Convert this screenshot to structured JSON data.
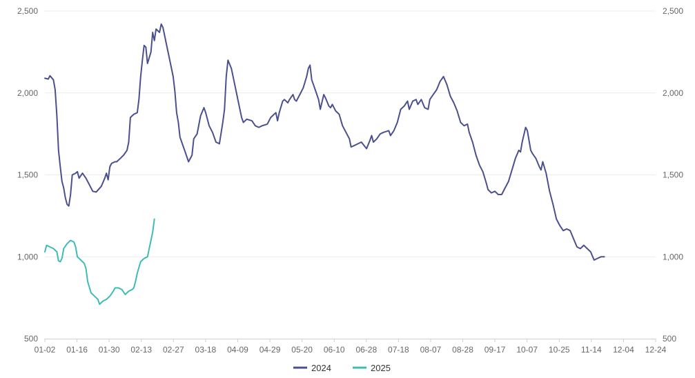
{
  "chart_data": {
    "type": "line",
    "title": "",
    "xlabel": "",
    "ylabel": "",
    "ylim": [
      500,
      2500
    ],
    "yticks": [
      500,
      1000,
      1500,
      2000,
      2500
    ],
    "ytick_labels": [
      "500",
      "1,000",
      "1,500",
      "2,000",
      "2,500"
    ],
    "x_domain": [
      "01-02",
      "12-24"
    ],
    "xtick_labels": [
      "01-02",
      "01-16",
      "01-30",
      "02-13",
      "02-27",
      "03-18",
      "04-09",
      "04-29",
      "05-20",
      "06-10",
      "06-28",
      "07-18",
      "08-07",
      "08-28",
      "09-17",
      "10-07",
      "10-25",
      "11-14",
      "12-04",
      "12-24"
    ],
    "grid": "horizontal",
    "legend_position": "bottom-center",
    "colors": {
      "2024": "#4a4f8e",
      "2025": "#3cbcb4"
    },
    "series": [
      {
        "name": "2024",
        "color": "#4a4f8e",
        "points": [
          [
            "01-02",
            2090
          ],
          [
            "01-04",
            2085
          ],
          [
            "01-05",
            2105
          ],
          [
            "01-07",
            2080
          ],
          [
            "01-08",
            2020
          ],
          [
            "01-09",
            1860
          ],
          [
            "01-10",
            1650
          ],
          [
            "01-11",
            1550
          ],
          [
            "01-12",
            1460
          ],
          [
            "01-13",
            1420
          ],
          [
            "01-14",
            1360
          ],
          [
            "01-15",
            1320
          ],
          [
            "01-16",
            1310
          ],
          [
            "01-17",
            1380
          ],
          [
            "01-18",
            1500
          ],
          [
            "01-20",
            1510
          ],
          [
            "01-21",
            1520
          ],
          [
            "01-22",
            1480
          ],
          [
            "01-24",
            1510
          ],
          [
            "01-26",
            1480
          ],
          [
            "01-28",
            1440
          ],
          [
            "01-30",
            1400
          ],
          [
            "02-01",
            1395
          ],
          [
            "02-04",
            1430
          ],
          [
            "02-06",
            1480
          ],
          [
            "02-07",
            1510
          ],
          [
            "02-08",
            1470
          ],
          [
            "02-09",
            1550
          ],
          [
            "02-10",
            1570
          ],
          [
            "02-12",
            1580
          ],
          [
            "02-13",
            1580
          ],
          [
            "02-15",
            1600
          ],
          [
            "02-17",
            1620
          ],
          [
            "02-19",
            1650
          ],
          [
            "02-20",
            1700
          ],
          [
            "02-21",
            1850
          ],
          [
            "02-23",
            1870
          ],
          [
            "02-25",
            1880
          ],
          [
            "02-26",
            1960
          ],
          [
            "02-27",
            2100
          ],
          [
            "02-28",
            2200
          ],
          [
            "02-29",
            2290
          ],
          [
            "03-01",
            2280
          ],
          [
            "03-02",
            2180
          ],
          [
            "03-04",
            2250
          ],
          [
            "03-05",
            2370
          ],
          [
            "03-06",
            2320
          ],
          [
            "03-07",
            2390
          ],
          [
            "03-09",
            2370
          ],
          [
            "03-10",
            2420
          ],
          [
            "03-11",
            2400
          ],
          [
            "03-13",
            2300
          ],
          [
            "03-15",
            2200
          ],
          [
            "03-17",
            2100
          ],
          [
            "03-18",
            2010
          ],
          [
            "03-19",
            1880
          ],
          [
            "03-20",
            1820
          ],
          [
            "03-21",
            1730
          ],
          [
            "03-22",
            1700
          ],
          [
            "03-24",
            1640
          ],
          [
            "03-26",
            1580
          ],
          [
            "03-28",
            1620
          ],
          [
            "03-29",
            1720
          ],
          [
            "03-31",
            1750
          ],
          [
            "04-02",
            1860
          ],
          [
            "04-04",
            1910
          ],
          [
            "04-05",
            1880
          ],
          [
            "04-07",
            1800
          ],
          [
            "04-09",
            1760
          ],
          [
            "04-11",
            1700
          ],
          [
            "04-13",
            1690
          ],
          [
            "04-15",
            1820
          ],
          [
            "04-16",
            1900
          ],
          [
            "04-17",
            2100
          ],
          [
            "04-18",
            2200
          ],
          [
            "04-20",
            2150
          ],
          [
            "04-22",
            2050
          ],
          [
            "04-24",
            1950
          ],
          [
            "04-26",
            1850
          ],
          [
            "04-27",
            1820
          ],
          [
            "04-29",
            1840
          ],
          [
            "05-02",
            1830
          ],
          [
            "05-04",
            1800
          ],
          [
            "05-06",
            1790
          ],
          [
            "05-08",
            1800
          ],
          [
            "05-11",
            1810
          ],
          [
            "05-13",
            1850
          ],
          [
            "05-15",
            1870
          ],
          [
            "05-16",
            1880
          ],
          [
            "05-17",
            1830
          ],
          [
            "05-18",
            1880
          ],
          [
            "05-20",
            1950
          ],
          [
            "05-21",
            1960
          ],
          [
            "05-23",
            1940
          ],
          [
            "05-24",
            1960
          ],
          [
            "05-26",
            1990
          ],
          [
            "05-27",
            1960
          ],
          [
            "05-28",
            1950
          ],
          [
            "05-30",
            1990
          ],
          [
            "06-01",
            2030
          ],
          [
            "06-03",
            2100
          ],
          [
            "06-04",
            2150
          ],
          [
            "06-05",
            2170
          ],
          [
            "06-06",
            2080
          ],
          [
            "06-08",
            2020
          ],
          [
            "06-10",
            1960
          ],
          [
            "06-11",
            1900
          ],
          [
            "06-13",
            1990
          ],
          [
            "06-14",
            1970
          ],
          [
            "06-16",
            1920
          ],
          [
            "06-17",
            1910
          ],
          [
            "06-18",
            1930
          ],
          [
            "06-20",
            1890
          ],
          [
            "06-22",
            1870
          ],
          [
            "06-24",
            1800
          ],
          [
            "06-26",
            1760
          ],
          [
            "06-28",
            1720
          ],
          [
            "06-29",
            1670
          ],
          [
            "07-01",
            1680
          ],
          [
            "07-03",
            1690
          ],
          [
            "07-05",
            1700
          ],
          [
            "07-08",
            1660
          ],
          [
            "07-10",
            1710
          ],
          [
            "07-11",
            1740
          ],
          [
            "07-12",
            1700
          ],
          [
            "07-14",
            1720
          ],
          [
            "07-16",
            1750
          ],
          [
            "07-18",
            1760
          ],
          [
            "07-21",
            1770
          ],
          [
            "07-22",
            1740
          ],
          [
            "07-24",
            1770
          ],
          [
            "07-26",
            1820
          ],
          [
            "07-28",
            1900
          ],
          [
            "07-30",
            1920
          ],
          [
            "08-01",
            1950
          ],
          [
            "08-02",
            1900
          ],
          [
            "08-04",
            1950
          ],
          [
            "08-06",
            1960
          ],
          [
            "08-07",
            1930
          ],
          [
            "08-09",
            1960
          ],
          [
            "08-11",
            1910
          ],
          [
            "08-13",
            1900
          ],
          [
            "08-14",
            1960
          ],
          [
            "08-16",
            1990
          ],
          [
            "08-18",
            2020
          ],
          [
            "08-20",
            2070
          ],
          [
            "08-22",
            2100
          ],
          [
            "08-24",
            2050
          ],
          [
            "08-26",
            1980
          ],
          [
            "08-28",
            1940
          ],
          [
            "08-30",
            1890
          ],
          [
            "09-01",
            1820
          ],
          [
            "09-03",
            1800
          ],
          [
            "09-05",
            1810
          ],
          [
            "09-06",
            1760
          ],
          [
            "09-08",
            1700
          ],
          [
            "09-10",
            1620
          ],
          [
            "09-12",
            1560
          ],
          [
            "09-14",
            1520
          ],
          [
            "09-16",
            1450
          ],
          [
            "09-17",
            1410
          ],
          [
            "09-19",
            1390
          ],
          [
            "09-21",
            1400
          ],
          [
            "09-23",
            1380
          ],
          [
            "09-25",
            1380
          ],
          [
            "09-27",
            1420
          ],
          [
            "09-29",
            1460
          ],
          [
            "10-01",
            1530
          ],
          [
            "10-03",
            1600
          ],
          [
            "10-05",
            1650
          ],
          [
            "10-06",
            1640
          ],
          [
            "10-07",
            1700
          ],
          [
            "10-09",
            1790
          ],
          [
            "10-10",
            1770
          ],
          [
            "10-12",
            1650
          ],
          [
            "10-13",
            1630
          ],
          [
            "10-15",
            1600
          ],
          [
            "10-17",
            1550
          ],
          [
            "10-18",
            1530
          ],
          [
            "10-19",
            1580
          ],
          [
            "10-21",
            1510
          ],
          [
            "10-23",
            1400
          ],
          [
            "10-25",
            1320
          ],
          [
            "10-27",
            1230
          ],
          [
            "10-29",
            1190
          ],
          [
            "10-31",
            1160
          ],
          [
            "11-02",
            1170
          ],
          [
            "11-04",
            1160
          ],
          [
            "11-06",
            1110
          ],
          [
            "11-08",
            1060
          ],
          [
            "11-10",
            1050
          ],
          [
            "11-12",
            1070
          ],
          [
            "11-14",
            1050
          ],
          [
            "11-16",
            1030
          ],
          [
            "11-18",
            980
          ],
          [
            "11-20",
            990
          ],
          [
            "11-22",
            1000
          ],
          [
            "11-24",
            1000
          ]
        ]
      },
      {
        "name": "2025",
        "color": "#3cbcb4",
        "points": [
          [
            "01-02",
            1030
          ],
          [
            "01-03",
            1070
          ],
          [
            "01-05",
            1060
          ],
          [
            "01-07",
            1050
          ],
          [
            "01-09",
            1030
          ],
          [
            "01-10",
            975
          ],
          [
            "01-11",
            970
          ],
          [
            "01-12",
            990
          ],
          [
            "01-13",
            1050
          ],
          [
            "01-15",
            1080
          ],
          [
            "01-17",
            1100
          ],
          [
            "01-19",
            1090
          ],
          [
            "01-20",
            1060
          ],
          [
            "01-21",
            1000
          ],
          [
            "01-23",
            980
          ],
          [
            "01-25",
            960
          ],
          [
            "01-26",
            930
          ],
          [
            "01-27",
            850
          ],
          [
            "01-29",
            780
          ],
          [
            "01-31",
            760
          ],
          [
            "02-02",
            740
          ],
          [
            "02-03",
            710
          ],
          [
            "02-05",
            730
          ],
          [
            "02-07",
            740
          ],
          [
            "02-09",
            760
          ],
          [
            "02-11",
            790
          ],
          [
            "02-12",
            810
          ],
          [
            "02-14",
            810
          ],
          [
            "02-16",
            800
          ],
          [
            "02-18",
            770
          ],
          [
            "02-20",
            790
          ],
          [
            "02-22",
            800
          ],
          [
            "02-23",
            810
          ],
          [
            "02-24",
            850
          ],
          [
            "02-25",
            900
          ],
          [
            "02-27",
            970
          ],
          [
            "02-29",
            990
          ],
          [
            "03-02",
            1000
          ],
          [
            "03-04",
            1100
          ],
          [
            "03-05",
            1150
          ],
          [
            "03-06",
            1230
          ]
        ]
      }
    ]
  },
  "legend": [
    {
      "label": "2024",
      "color": "#4a4f8e"
    },
    {
      "label": "2025",
      "color": "#3cbcb4"
    }
  ]
}
